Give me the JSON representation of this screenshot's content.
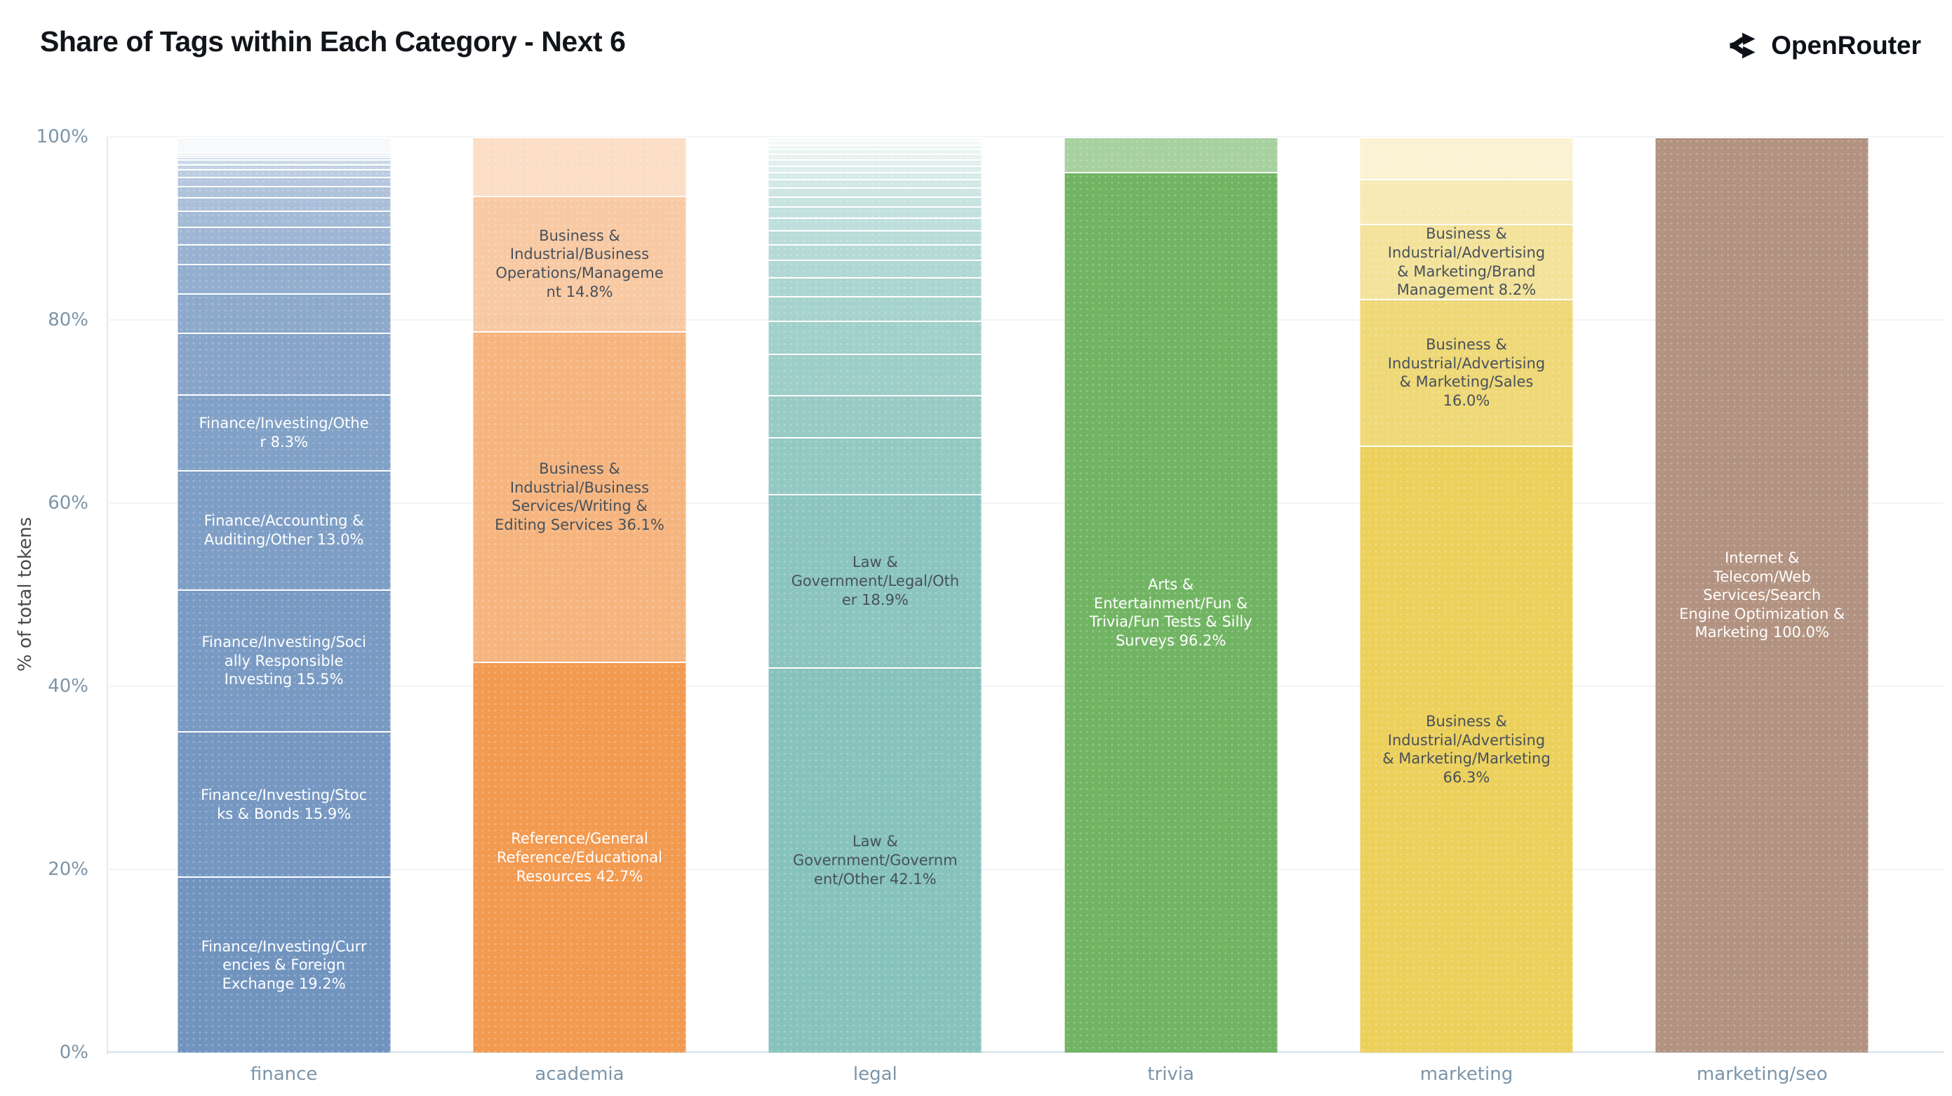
{
  "title": "Share of Tags within Each Category - Next 6",
  "brand": {
    "name": "OpenRouter",
    "icon": "openrouter-fork-icon"
  },
  "axes": {
    "y_title": "% of total tokens",
    "y_ticks": [
      {
        "label": "0%",
        "value": 0
      },
      {
        "label": "20%",
        "value": 20
      },
      {
        "label": "40%",
        "value": 40
      },
      {
        "label": "60%",
        "value": 60
      },
      {
        "label": "80%",
        "value": 80
      },
      {
        "label": "100%",
        "value": 100
      }
    ]
  },
  "chart_data": {
    "type": "bar",
    "stacked": true,
    "title": "Share of Tags within Each Category - Next 6",
    "xlabel": "",
    "ylabel": "% of total tokens",
    "ylim": [
      0,
      100
    ],
    "grid": true,
    "legend": false,
    "categories": [
      "finance",
      "academia",
      "legal",
      "trivia",
      "marketing",
      "marketing/seo"
    ],
    "text_colors": {
      "light": "#ffffff",
      "dark": "#47515c"
    },
    "bars": [
      {
        "category": "finance",
        "base_rgb": [
          113,
          148,
          191
        ],
        "segments": [
          {
            "pct": 19.2,
            "alpha": 1.0,
            "label": "Finance/Investing/Currencies & Foreign Exchange 19.2%",
            "text": "light"
          },
          {
            "pct": 15.9,
            "alpha": 0.97,
            "label": "Finance/Investing/Stocks & Bonds 15.9%",
            "text": "light"
          },
          {
            "pct": 15.5,
            "alpha": 0.94,
            "label": "Finance/Investing/Socially Responsible Investing 15.5%",
            "text": "light"
          },
          {
            "pct": 13.0,
            "alpha": 0.91,
            "label": "Finance/Accounting & Auditing/Other 13.0%",
            "text": "light"
          },
          {
            "pct": 8.3,
            "alpha": 0.88,
            "label": "Finance/Investing/Other 8.3%",
            "text": "light"
          },
          {
            "pct": 6.7,
            "alpha": 0.84
          },
          {
            "pct": 4.3,
            "alpha": 0.8
          },
          {
            "pct": 3.2,
            "alpha": 0.76
          },
          {
            "pct": 2.2,
            "alpha": 0.72
          },
          {
            "pct": 1.9,
            "alpha": 0.68
          },
          {
            "pct": 1.75,
            "alpha": 0.64
          },
          {
            "pct": 1.5,
            "alpha": 0.6
          },
          {
            "pct": 1.2,
            "alpha": 0.56
          },
          {
            "pct": 1.0,
            "alpha": 0.52
          },
          {
            "pct": 0.8,
            "alpha": 0.47
          },
          {
            "pct": 0.6,
            "alpha": 0.42
          },
          {
            "pct": 0.5,
            "alpha": 0.37
          },
          {
            "pct": 0.3,
            "alpha": 0.32
          },
          {
            "pct": 0.25,
            "alpha": 0.27
          },
          {
            "pct": 0.25,
            "alpha": 0.22
          },
          {
            "pct": 1.7,
            "alpha": 0.06
          }
        ]
      },
      {
        "category": "academia",
        "base_rgb": [
          242,
          154,
          80
        ],
        "segments": [
          {
            "pct": 42.7,
            "alpha": 1.0,
            "label": "Reference/General Reference/Educational Resources 42.7%",
            "text": "light"
          },
          {
            "pct": 36.1,
            "alpha": 0.73,
            "label": "Business & Industrial/Business Services/Writing & Editing Services 36.1%",
            "text": "dark"
          },
          {
            "pct": 14.8,
            "alpha": 0.52,
            "label": "Business & Industrial/Business Operations/Management 14.8%",
            "text": "dark"
          },
          {
            "pct": 6.4,
            "alpha": 0.33
          }
        ]
      },
      {
        "category": "legal",
        "base_rgb": [
          135,
          195,
          188
        ],
        "segments": [
          {
            "pct": 42.1,
            "alpha": 1.0,
            "label": "Law & Government/Government/Other 42.1%",
            "text": "dark"
          },
          {
            "pct": 18.9,
            "alpha": 0.96,
            "label": "Law & Government/Legal/Other 18.9%",
            "text": "dark"
          },
          {
            "pct": 6.2,
            "alpha": 0.9
          },
          {
            "pct": 4.6,
            "alpha": 0.86
          },
          {
            "pct": 4.5,
            "alpha": 0.82
          },
          {
            "pct": 3.6,
            "alpha": 0.78
          },
          {
            "pct": 2.7,
            "alpha": 0.74
          },
          {
            "pct": 2.1,
            "alpha": 0.7
          },
          {
            "pct": 1.9,
            "alpha": 0.66
          },
          {
            "pct": 1.7,
            "alpha": 0.62
          },
          {
            "pct": 1.5,
            "alpha": 0.58
          },
          {
            "pct": 1.4,
            "alpha": 0.54
          },
          {
            "pct": 1.2,
            "alpha": 0.5
          },
          {
            "pct": 1.1,
            "alpha": 0.46
          },
          {
            "pct": 1.0,
            "alpha": 0.42
          },
          {
            "pct": 0.9,
            "alpha": 0.38
          },
          {
            "pct": 0.8,
            "alpha": 0.34
          },
          {
            "pct": 0.7,
            "alpha": 0.3
          },
          {
            "pct": 0.65,
            "alpha": 0.26
          },
          {
            "pct": 0.6,
            "alpha": 0.22
          },
          {
            "pct": 0.55,
            "alpha": 0.18
          },
          {
            "pct": 0.5,
            "alpha": 0.14
          },
          {
            "pct": 0.45,
            "alpha": 0.1
          },
          {
            "pct": 0.4,
            "alpha": 0.07
          }
        ]
      },
      {
        "category": "trivia",
        "base_rgb": [
          113,
          180,
          99
        ],
        "segments": [
          {
            "pct": 96.2,
            "alpha": 1.0,
            "label": "Arts & Entertainment/Fun & Trivia/Fun Tests & Silly Surveys 96.2%",
            "text": "light"
          },
          {
            "pct": 3.8,
            "alpha": 0.62
          }
        ]
      },
      {
        "category": "marketing",
        "base_rgb": [
          236,
          208,
          92
        ],
        "segments": [
          {
            "pct": 66.3,
            "alpha": 1.0,
            "label": "Business & Industrial/Advertising & Marketing/Marketing 66.3%",
            "text": "dark"
          },
          {
            "pct": 16.0,
            "alpha": 0.83,
            "label": "Business & Industrial/Advertising & Marketing/Sales 16.0%",
            "text": "dark"
          },
          {
            "pct": 8.2,
            "alpha": 0.62,
            "label": "Business & Industrial/Advertising & Marketing/Brand Management 8.2%",
            "text": "dark"
          },
          {
            "pct": 4.9,
            "alpha": 0.45
          },
          {
            "pct": 4.6,
            "alpha": 0.28
          }
        ]
      },
      {
        "category": "marketing/seo",
        "base_rgb": [
          178,
          146,
          128
        ],
        "segments": [
          {
            "pct": 100.0,
            "alpha": 1.0,
            "label": "Internet & Telecom/Web Services/Search Engine Optimization & Marketing 100.0%",
            "text": "light"
          }
        ]
      }
    ]
  }
}
